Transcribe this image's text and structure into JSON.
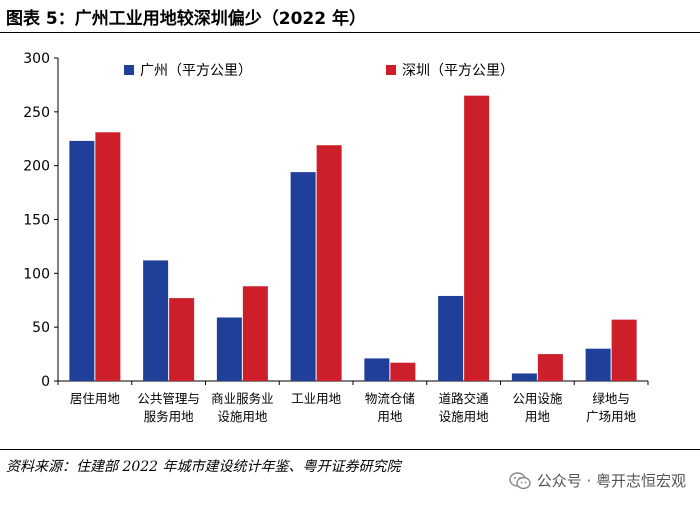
{
  "title": "图表 5：广州工业用地较深圳偏少（2022 年）",
  "source": "资料来源：住建部 2022 年城市建设统计年鉴、粤开证券研究院",
  "watermark": "公众号 · 粤开志恒宏观",
  "chart_data": {
    "type": "bar",
    "categories": [
      [
        "居住用地"
      ],
      [
        "公共管理与",
        "服务用地"
      ],
      [
        "商业服务业",
        "设施用地"
      ],
      [
        "工业用地"
      ],
      [
        "物流仓储",
        "用地"
      ],
      [
        "道路交通",
        "设施用地"
      ],
      [
        "公用设施",
        "用地"
      ],
      [
        "绿地与",
        "广场用地"
      ]
    ],
    "series": [
      {
        "name": "广州（平方公里）",
        "color": "#1f3f99",
        "values": [
          223,
          112,
          59,
          194,
          21,
          79,
          7,
          30
        ]
      },
      {
        "name": "深圳（平方公里）",
        "color": "#cc1f2a",
        "values": [
          231,
          77,
          88,
          219,
          17,
          265,
          25,
          57
        ]
      }
    ],
    "ylim": [
      0,
      300
    ],
    "yticks": [
      0,
      50,
      100,
      150,
      200,
      250,
      300
    ],
    "grid": false,
    "legend": "top"
  }
}
